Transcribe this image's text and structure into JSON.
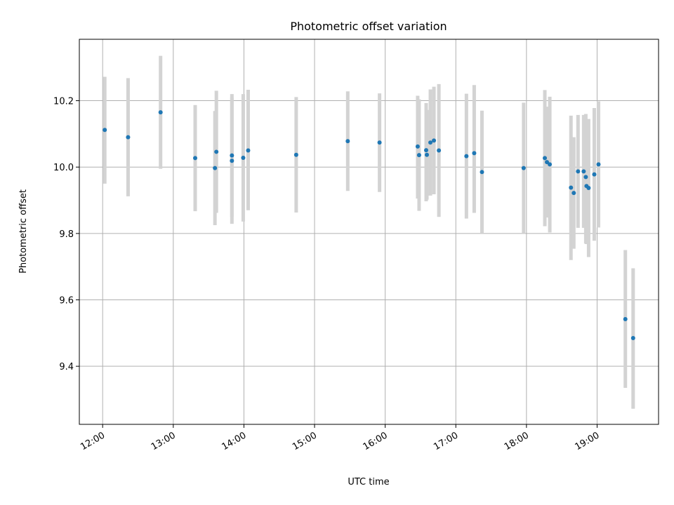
{
  "chart_data": {
    "type": "scatter",
    "title": "Photometric offset variation",
    "xlabel": "UTC time",
    "ylabel": "Photometric offset",
    "x_unit": "hours (UTC)",
    "xlim": [
      11.67,
      19.87
    ],
    "ylim": [
      9.225,
      10.385
    ],
    "x_ticks": [
      {
        "value": 12,
        "label": "12:00"
      },
      {
        "value": 13,
        "label": "13:00"
      },
      {
        "value": 14,
        "label": "14:00"
      },
      {
        "value": 15,
        "label": "15:00"
      },
      {
        "value": 16,
        "label": "16:00"
      },
      {
        "value": 17,
        "label": "17:00"
      },
      {
        "value": 18,
        "label": "18:00"
      },
      {
        "value": 19,
        "label": "19:00"
      }
    ],
    "y_ticks": [
      {
        "value": 9.4,
        "label": "9.4"
      },
      {
        "value": 9.6,
        "label": "9.6"
      },
      {
        "value": 9.8,
        "label": "9.8"
      },
      {
        "value": 10.0,
        "label": "10.0"
      },
      {
        "value": 10.2,
        "label": "10.2"
      }
    ],
    "grid": true,
    "point_color": "#1f77b4",
    "errorbar_color": "#d3d3d3",
    "series": [
      {
        "points": [
          {
            "x": 12.03,
            "y": 10.112,
            "lo": 9.95,
            "hi": 10.272
          },
          {
            "x": 12.36,
            "y": 10.09,
            "lo": 9.912,
            "hi": 10.268
          },
          {
            "x": 12.82,
            "y": 10.165,
            "lo": 9.995,
            "hi": 10.335
          },
          {
            "x": 13.31,
            "y": 10.027,
            "lo": 9.867,
            "hi": 10.187
          },
          {
            "x": 13.59,
            "y": 9.997,
            "lo": 9.825,
            "hi": 10.169
          },
          {
            "x": 13.61,
            "y": 10.046,
            "lo": 9.862,
            "hi": 10.23
          },
          {
            "x": 13.83,
            "y": 10.035,
            "lo": 9.85,
            "hi": 10.22
          },
          {
            "x": 13.83,
            "y": 10.019,
            "lo": 9.829,
            "hi": 10.209
          },
          {
            "x": 13.99,
            "y": 10.028,
            "lo": 9.836,
            "hi": 10.22
          },
          {
            "x": 14.06,
            "y": 10.05,
            "lo": 9.87,
            "hi": 10.233
          },
          {
            "x": 14.74,
            "y": 10.037,
            "lo": 9.863,
            "hi": 10.211
          },
          {
            "x": 15.47,
            "y": 10.078,
            "lo": 9.928,
            "hi": 10.228
          },
          {
            "x": 15.92,
            "y": 10.074,
            "lo": 9.925,
            "hi": 10.222
          },
          {
            "x": 16.46,
            "y": 10.062,
            "lo": 9.905,
            "hi": 10.215
          },
          {
            "x": 16.48,
            "y": 10.036,
            "lo": 9.868,
            "hi": 10.204
          },
          {
            "x": 16.58,
            "y": 10.051,
            "lo": 9.897,
            "hi": 10.193
          },
          {
            "x": 16.59,
            "y": 10.037,
            "lo": 9.902,
            "hi": 10.172
          },
          {
            "x": 16.64,
            "y": 10.074,
            "lo": 9.914,
            "hi": 10.234
          },
          {
            "x": 16.69,
            "y": 10.08,
            "lo": 9.918,
            "hi": 10.242
          },
          {
            "x": 16.76,
            "y": 10.05,
            "lo": 9.85,
            "hi": 10.25
          },
          {
            "x": 17.15,
            "y": 10.033,
            "lo": 9.845,
            "hi": 10.221
          },
          {
            "x": 17.26,
            "y": 10.042,
            "lo": 9.862,
            "hi": 10.247
          },
          {
            "x": 17.37,
            "y": 9.985,
            "lo": 9.8,
            "hi": 10.17
          },
          {
            "x": 17.96,
            "y": 9.997,
            "lo": 9.8,
            "hi": 10.194
          },
          {
            "x": 18.26,
            "y": 10.027,
            "lo": 9.822,
            "hi": 10.232
          },
          {
            "x": 18.29,
            "y": 10.015,
            "lo": 9.848,
            "hi": 10.182
          },
          {
            "x": 18.33,
            "y": 10.008,
            "lo": 9.803,
            "hi": 10.212
          },
          {
            "x": 18.63,
            "y": 9.938,
            "lo": 9.72,
            "hi": 10.155
          },
          {
            "x": 18.67,
            "y": 9.922,
            "lo": 9.754,
            "hi": 10.09
          },
          {
            "x": 18.73,
            "y": 9.987,
            "lo": 9.817,
            "hi": 10.157
          },
          {
            "x": 18.81,
            "y": 9.987,
            "lo": 9.817,
            "hi": 10.157
          },
          {
            "x": 18.84,
            "y": 9.97,
            "lo": 9.77,
            "hi": 10.16
          },
          {
            "x": 18.85,
            "y": 9.943,
            "lo": 9.768,
            "hi": 10.118
          },
          {
            "x": 18.88,
            "y": 9.937,
            "lo": 9.729,
            "hi": 10.145
          },
          {
            "x": 18.96,
            "y": 9.978,
            "lo": 9.778,
            "hi": 10.178
          },
          {
            "x": 19.02,
            "y": 10.008,
            "lo": 9.818,
            "hi": 10.198
          },
          {
            "x": 19.4,
            "y": 9.542,
            "lo": 9.335,
            "hi": 9.75
          },
          {
            "x": 19.51,
            "y": 9.485,
            "lo": 9.272,
            "hi": 9.695
          }
        ]
      }
    ]
  }
}
